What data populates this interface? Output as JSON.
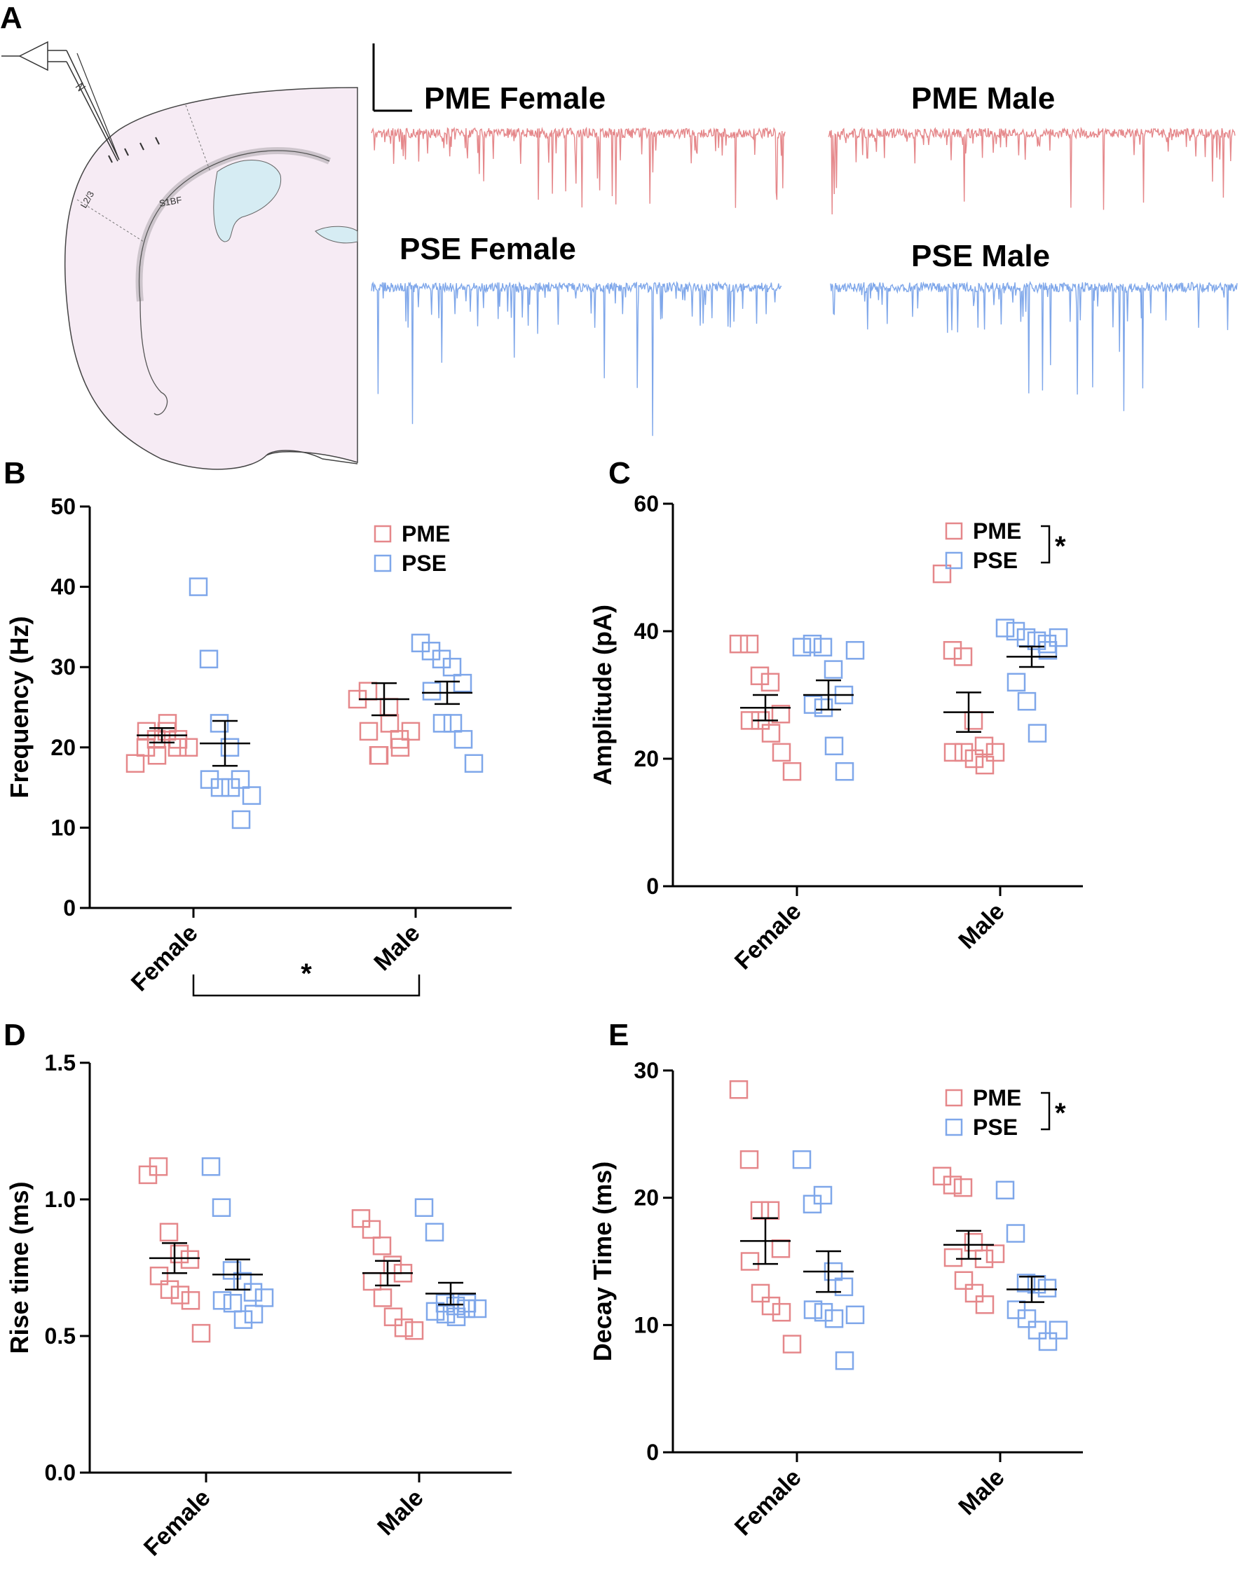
{
  "colors": {
    "pme": "#e5878a",
    "pse": "#7fa7ea",
    "axis": "#000000"
  },
  "panels": {
    "a": "A",
    "b": "B",
    "c": "C",
    "d": "D",
    "e": "E"
  },
  "brain": {
    "layer_label": "L2/3",
    "region_label": "S1BF"
  },
  "traces": [
    {
      "label": "PME Female",
      "group": "pme"
    },
    {
      "label": "PME Male",
      "group": "pme"
    },
    {
      "label": "PSE Female",
      "group": "pse"
    },
    {
      "label": "PSE Male",
      "group": "pse"
    }
  ],
  "chart_data": [
    {
      "panel": "B",
      "type": "scatter",
      "ylabel": "Frequency (Hz)",
      "ylim": [
        0,
        50
      ],
      "yticks": [
        0,
        10,
        20,
        30,
        40,
        50
      ],
      "categories": [
        "Female",
        "Male"
      ],
      "legend": {
        "placement": "top-right",
        "entries": [
          "PME",
          "PSE"
        ],
        "significance": ""
      },
      "bottom_significance": "*",
      "series": [
        {
          "name": "PME",
          "group": "pme",
          "points": [
            [
              18,
              26
            ],
            [
              20,
              27
            ],
            [
              21,
              19
            ],
            [
              22,
              25
            ],
            [
              20,
              21
            ],
            [
              22,
              22
            ],
            [
              19,
              19
            ],
            [
              23,
              23
            ],
            [
              21,
              20
            ],
            [
              20,
              22
            ]
          ],
          "mean": [
            21.5,
            26
          ],
          "sem": [
            0.9,
            2.0
          ]
        },
        {
          "name": "PSE",
          "group": "pse",
          "points": [
            [
              40,
              33
            ],
            [
              31,
              32
            ],
            [
              23,
              31
            ],
            [
              20,
              30
            ],
            [
              16,
              28
            ],
            [
              16,
              27
            ],
            [
              15,
              23
            ],
            [
              15,
              23
            ],
            [
              11,
              21
            ],
            [
              14,
              18
            ]
          ],
          "mean": [
            20.5,
            26.8
          ],
          "sem": [
            2.8,
            1.4
          ]
        }
      ]
    },
    {
      "panel": "C",
      "type": "scatter",
      "ylabel": "Amplitude (pA)",
      "ylim": [
        0,
        60
      ],
      "yticks": [
        0,
        20,
        40,
        60
      ],
      "categories": [
        "Female",
        "Male"
      ],
      "legend": {
        "placement": "top-right",
        "entries": [
          "PME",
          "PSE"
        ],
        "significance": "*"
      },
      "bottom_significance": "",
      "series": [
        {
          "name": "PME",
          "group": "pme",
          "points": [
            [
              38,
              49
            ],
            [
              38,
              37
            ],
            [
              33,
              36
            ],
            [
              32,
              26
            ],
            [
              27,
              22
            ],
            [
              26,
              21
            ],
            [
              26,
              21
            ],
            [
              24,
              20
            ],
            [
              21,
              19
            ],
            [
              18,
              21
            ]
          ],
          "mean": [
            28,
            27.3
          ],
          "sem": [
            2.0,
            3.1
          ]
        },
        {
          "name": "PSE",
          "group": "pse",
          "points": [
            [
              37.5,
              40.5
            ],
            [
              38,
              40
            ],
            [
              37.5,
              39
            ],
            [
              34,
              38.5
            ],
            [
              30,
              38
            ],
            [
              28.5,
              32
            ],
            [
              28,
              29
            ],
            [
              22,
              24
            ],
            [
              18,
              37
            ],
            [
              37,
              39
            ]
          ],
          "mean": [
            30,
            36
          ],
          "sem": [
            2.3,
            1.6
          ]
        }
      ]
    },
    {
      "panel": "D",
      "type": "scatter",
      "ylabel": "Rise time (ms)",
      "ylim": [
        0,
        1.5
      ],
      "yticks": [
        "0.0",
        "0.5",
        "1.0",
        "1.5"
      ],
      "categories": [
        "Female",
        "Male"
      ],
      "legend": {
        "placement": "none",
        "entries": [],
        "significance": ""
      },
      "bottom_significance": "",
      "series": [
        {
          "name": "PME",
          "group": "pme",
          "points": [
            [
              1.09,
              0.93
            ],
            [
              1.12,
              0.89
            ],
            [
              0.88,
              0.83
            ],
            [
              0.8,
              0.76
            ],
            [
              0.78,
              0.73
            ],
            [
              0.72,
              0.7
            ],
            [
              0.67,
              0.64
            ],
            [
              0.65,
              0.57
            ],
            [
              0.63,
              0.53
            ],
            [
              0.51,
              0.52
            ]
          ],
          "mean": [
            0.785,
            0.73
          ],
          "sem": [
            0.055,
            0.045
          ]
        },
        {
          "name": "PSE",
          "group": "pse",
          "points": [
            [
              1.12,
              0.97
            ],
            [
              0.97,
              0.88
            ],
            [
              0.74,
              0.62
            ],
            [
              0.7,
              0.61
            ],
            [
              0.66,
              0.6
            ],
            [
              0.63,
              0.59
            ],
            [
              0.62,
              0.58
            ],
            [
              0.56,
              0.57
            ],
            [
              0.58,
              0.62
            ],
            [
              0.64,
              0.6
            ]
          ],
          "mean": [
            0.725,
            0.655
          ],
          "sem": [
            0.055,
            0.04
          ]
        }
      ]
    },
    {
      "panel": "E",
      "type": "scatter",
      "ylabel": "Decay Time (ms)",
      "ylim": [
        0,
        30
      ],
      "yticks": [
        0,
        10,
        20,
        30
      ],
      "categories": [
        "Female",
        "Male"
      ],
      "legend": {
        "placement": "top-right",
        "entries": [
          "PME",
          "PSE"
        ],
        "significance": "*"
      },
      "bottom_significance": "",
      "series": [
        {
          "name": "PME",
          "group": "pme",
          "points": [
            [
              28.5,
              21.7
            ],
            [
              23,
              21
            ],
            [
              19,
              20.8
            ],
            [
              19,
              16.5
            ],
            [
              16,
              15.2
            ],
            [
              15,
              15.3
            ],
            [
              12.5,
              13.5
            ],
            [
              11.5,
              12.5
            ],
            [
              11,
              11.6
            ],
            [
              8.5,
              15.6
            ]
          ],
          "mean": [
            16.6,
            16.3
          ],
          "sem": [
            1.8,
            1.1
          ]
        },
        {
          "name": "PSE",
          "group": "pse",
          "points": [
            [
              23,
              20.6
            ],
            [
              19.5,
              17.2
            ],
            [
              20.2,
              13.3
            ],
            [
              14.2,
              13.2
            ],
            [
              13,
              12.9
            ],
            [
              11.2,
              11.2
            ],
            [
              11,
              10.5
            ],
            [
              10.5,
              9.6
            ],
            [
              7.2,
              8.7
            ],
            [
              10.8,
              9.6
            ]
          ],
          "mean": [
            14.2,
            12.8
          ],
          "sem": [
            1.6,
            1.0
          ]
        }
      ]
    }
  ]
}
